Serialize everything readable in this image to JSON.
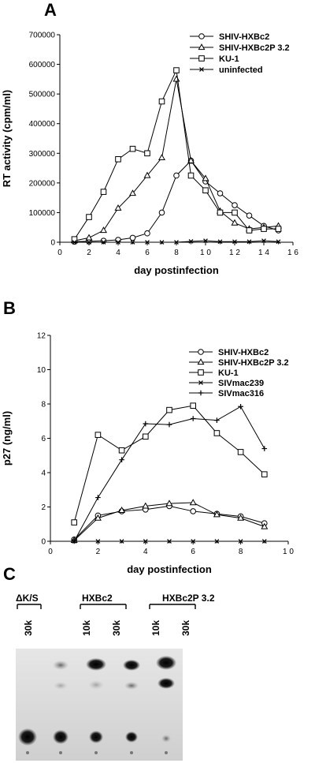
{
  "panels": {
    "a": "A",
    "b": "B",
    "c": "C"
  },
  "chart_data": [
    {
      "type": "line",
      "xlabel": "day postinfection",
      "ylabel": "RT activity (cpm/ml)",
      "xlim": [
        0,
        16
      ],
      "ylim": [
        0,
        700000
      ],
      "x_ticks": [
        0,
        2,
        4,
        6,
        8,
        10,
        12,
        14,
        16
      ],
      "x_tick_labels": [
        "0",
        "2",
        "4",
        "6",
        "8",
        "1 0",
        "1 2",
        "1 4",
        "1 6"
      ],
      "y_ticks": [
        0,
        100000,
        200000,
        300000,
        400000,
        500000,
        600000,
        700000
      ],
      "y_tick_labels": [
        "0",
        "100000",
        "200000",
        "300000",
        "400000",
        "500000",
        "600000",
        "700000"
      ],
      "grid": false,
      "legend_position": "top-right",
      "series": [
        {
          "name": "SHIV-HXBc2",
          "marker": "circle",
          "x": [
            1,
            2,
            3,
            4,
            5,
            6,
            7,
            8,
            9,
            10,
            11,
            12,
            13,
            14,
            15
          ],
          "y": [
            2000,
            3000,
            5000,
            8000,
            15000,
            30000,
            100000,
            225000,
            275000,
            205000,
            165000,
            125000,
            90000,
            55000,
            40000
          ]
        },
        {
          "name": "SHIV-HXBc2P 3.2",
          "marker": "triangle",
          "x": [
            1,
            2,
            3,
            4,
            5,
            6,
            7,
            8,
            9,
            10,
            11,
            12,
            13,
            14,
            15
          ],
          "y": [
            5000,
            15000,
            40000,
            115000,
            165000,
            225000,
            285000,
            550000,
            275000,
            215000,
            105000,
            65000,
            45000,
            50000,
            55000
          ]
        },
        {
          "name": "KU-1",
          "marker": "square",
          "x": [
            1,
            2,
            3,
            4,
            5,
            6,
            7,
            8,
            9,
            10,
            11,
            12,
            13,
            14,
            15
          ],
          "y": [
            10000,
            85000,
            170000,
            280000,
            315000,
            300000,
            475000,
            580000,
            225000,
            175000,
            100000,
            100000,
            40000,
            45000,
            45000
          ]
        },
        {
          "name": "uninfected",
          "marker": "x",
          "x": [
            1,
            2,
            3,
            4,
            5,
            6,
            7,
            8,
            9,
            10,
            11,
            12,
            13,
            14,
            15
          ],
          "y": [
            0,
            0,
            0,
            0,
            0,
            0,
            0,
            0,
            3000,
            5000,
            2000,
            2000,
            2000,
            5000,
            2000
          ]
        }
      ]
    },
    {
      "type": "line",
      "xlabel": "day postinfection",
      "ylabel": "p27 (ng/ml)",
      "xlim": [
        0,
        10
      ],
      "ylim": [
        0,
        12
      ],
      "x_ticks": [
        0,
        2,
        4,
        6,
        8,
        10
      ],
      "x_tick_labels": [
        "0",
        "2",
        "4",
        "6",
        "8",
        "1 0"
      ],
      "y_ticks": [
        0,
        2,
        4,
        6,
        8,
        10,
        12
      ],
      "y_tick_labels": [
        "0",
        "2",
        "4",
        "6",
        "8",
        "10",
        "12"
      ],
      "grid": false,
      "legend_position": "top-right",
      "series": [
        {
          "name": "SHIV-HXBc2",
          "marker": "circle",
          "x": [
            1,
            2,
            3,
            4,
            5,
            6,
            7,
            8,
            9
          ],
          "y": [
            0.1,
            1.5,
            1.75,
            1.85,
            2.05,
            1.75,
            1.6,
            1.45,
            1.05
          ]
        },
        {
          "name": "SHIV-HXBc2P 3.2",
          "marker": "triangle",
          "x": [
            1,
            2,
            3,
            4,
            5,
            6,
            7,
            8,
            9
          ],
          "y": [
            0.05,
            1.35,
            1.8,
            2.05,
            2.2,
            2.25,
            1.55,
            1.35,
            0.85
          ]
        },
        {
          "name": "KU-1",
          "marker": "square",
          "x": [
            1,
            2,
            3,
            4,
            5,
            6,
            7,
            8,
            9
          ],
          "y": [
            1.1,
            6.2,
            5.3,
            6.1,
            7.65,
            7.9,
            6.3,
            5.2,
            3.9
          ]
        },
        {
          "name": "SIVmac239",
          "marker": "x",
          "x": [
            1,
            2,
            3,
            4,
            5,
            6,
            7,
            8,
            9
          ],
          "y": [
            0,
            0,
            0,
            0,
            0,
            0,
            0,
            0,
            0
          ]
        },
        {
          "name": "SIVmac316",
          "marker": "plus",
          "x": [
            1,
            2,
            3,
            4,
            5,
            6,
            7,
            8,
            9
          ],
          "y": [
            0,
            2.55,
            4.75,
            6.85,
            6.8,
            7.15,
            7.05,
            7.85,
            5.4
          ]
        }
      ]
    }
  ],
  "gel": {
    "groups": [
      {
        "label": "ΔK/S",
        "lanes": [
          "30k"
        ]
      },
      {
        "label": "HXBc2",
        "lanes": [
          "10k",
          "30k"
        ]
      },
      {
        "label": "HXBc2P 3.2",
        "lanes": [
          "10k",
          "30k"
        ]
      }
    ]
  }
}
